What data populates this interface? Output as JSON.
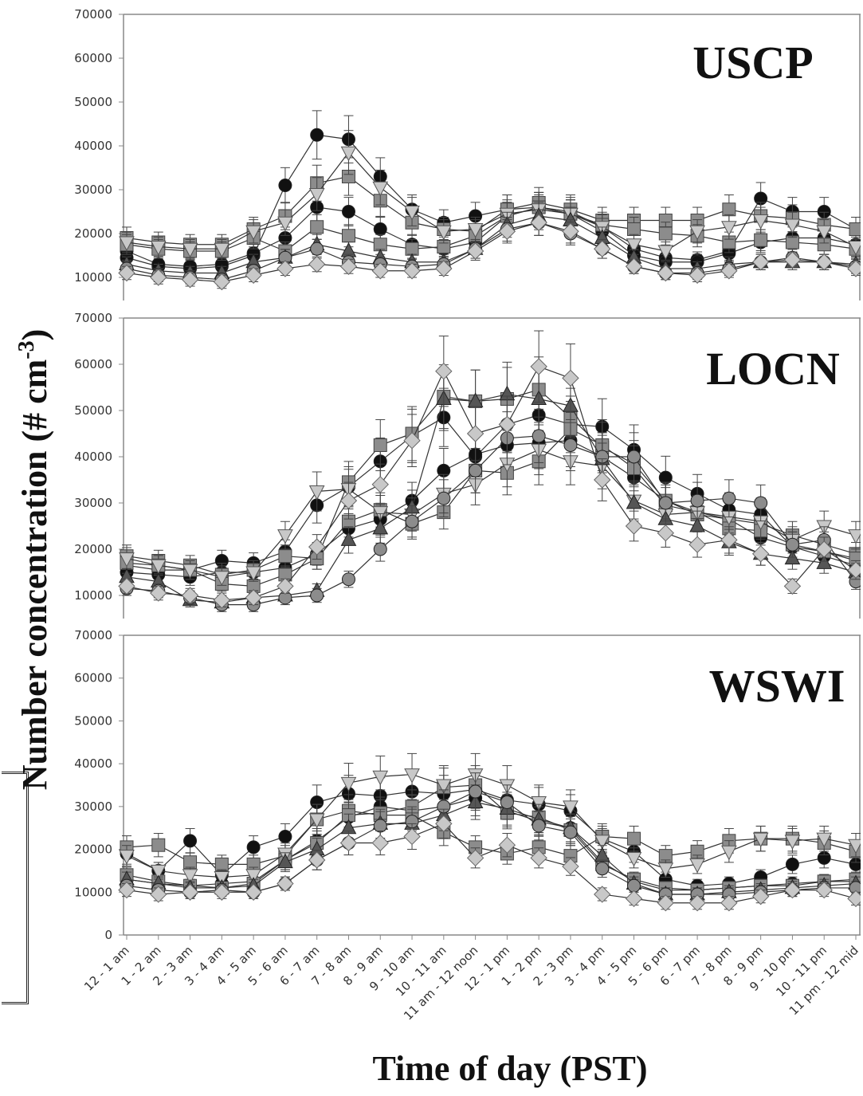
{
  "chart_data": [
    {
      "type": "line",
      "title": "USCP",
      "ylim": [
        10000,
        70000
      ],
      "yticks": [
        10000,
        20000,
        30000,
        40000,
        50000,
        60000,
        70000
      ],
      "series": [
        {
          "style": "black-circle",
          "values": [
            14500,
            12500,
            12000,
            12500,
            15000,
            31000,
            42500,
            41500,
            33000,
            25500,
            22500,
            24000,
            25500,
            26000,
            25000,
            21500,
            16500,
            14500,
            14000,
            16000,
            28000,
            25000,
            25000,
            21000
          ]
        },
        {
          "style": "black-circle",
          "values": [
            16000,
            13000,
            12500,
            13000,
            15500,
            19000,
            26000,
            25000,
            21000,
            17500,
            16500,
            18000,
            24000,
            26000,
            24500,
            20500,
            15000,
            13500,
            13500,
            15500,
            18000,
            19000,
            19000,
            17500
          ]
        },
        {
          "style": "gray-square",
          "values": [
            19000,
            18000,
            17500,
            17500,
            21000,
            24000,
            31500,
            33000,
            27500,
            22500,
            21000,
            20500,
            25500,
            27000,
            25500,
            23000,
            23000,
            23000,
            23000,
            25500,
            24000,
            23500,
            22000,
            21000
          ]
        },
        {
          "style": "gray-square",
          "values": [
            17500,
            16500,
            16000,
            16000,
            19000,
            16000,
            21500,
            19500,
            17500,
            16500,
            17000,
            19500,
            24000,
            26000,
            24500,
            22000,
            21000,
            20000,
            19500,
            18000,
            18500,
            18000,
            17500,
            16500
          ]
        },
        {
          "style": "light-triangle-down",
          "values": [
            18000,
            17000,
            16500,
            16500,
            20500,
            22500,
            29000,
            38500,
            30500,
            25000,
            20500,
            21000,
            24500,
            25500,
            24500,
            21500,
            17500,
            16000,
            20500,
            21500,
            23000,
            22000,
            20500,
            17000
          ]
        },
        {
          "style": "dark-triangle-up",
          "values": [
            13000,
            11500,
            11000,
            11000,
            13500,
            14500,
            17500,
            16000,
            14500,
            13500,
            13500,
            16500,
            22000,
            24000,
            23000,
            19000,
            14500,
            12000,
            12000,
            13000,
            13500,
            13500,
            13500,
            13000
          ]
        },
        {
          "style": "gray-circle",
          "values": [
            12000,
            10500,
            10000,
            9500,
            11500,
            14500,
            16500,
            13500,
            13000,
            12500,
            13000,
            16500,
            21000,
            22500,
            20000,
            16500,
            12500,
            11000,
            11000,
            12000,
            13500,
            14500,
            13500,
            12500
          ]
        },
        {
          "style": "light-diamond",
          "values": [
            11000,
            10000,
            9500,
            9000,
            10500,
            12000,
            13000,
            12500,
            11500,
            11500,
            12000,
            16000,
            20500,
            22500,
            20500,
            16500,
            12500,
            11000,
            10500,
            11500,
            13500,
            14000,
            13500,
            12000
          ]
        }
      ]
    },
    {
      "type": "line",
      "title": "LOCN",
      "ylim": [
        10000,
        70000
      ],
      "yticks": [
        10000,
        20000,
        30000,
        40000,
        50000,
        60000,
        70000
      ],
      "series": [
        {
          "style": "black-circle",
          "values": [
            16500,
            15500,
            15500,
            17500,
            17000,
            19500,
            29500,
            33500,
            39000,
            44500,
            48500,
            40000,
            47000,
            49000,
            47000,
            46500,
            41500,
            35500,
            32000,
            28500,
            27500,
            20500,
            19500,
            17500
          ]
        },
        {
          "style": "black-circle",
          "values": [
            15000,
            14500,
            14000,
            15000,
            15000,
            16000,
            19000,
            24500,
            26500,
            30500,
            37000,
            40500,
            42500,
            43000,
            43500,
            40000,
            35500,
            30500,
            28000,
            26500,
            22500,
            20500,
            18500,
            16500
          ]
        },
        {
          "style": "gray-square",
          "values": [
            18500,
            17500,
            16500,
            14500,
            15500,
            18500,
            18000,
            34500,
            42500,
            45000,
            53000,
            52000,
            52500,
            54500,
            48500,
            42000,
            38500,
            30500,
            27500,
            26500,
            25500,
            23000,
            21000,
            19000
          ]
        },
        {
          "style": "gray-square",
          "values": [
            17000,
            16500,
            15500,
            12500,
            12000,
            14500,
            18000,
            26000,
            28500,
            25500,
            28000,
            37000,
            36500,
            39000,
            46000,
            42500,
            37500,
            29500,
            28000,
            24500,
            24000,
            21000,
            19500,
            18000
          ]
        },
        {
          "style": "light-triangle-down",
          "values": [
            18000,
            16500,
            15500,
            14000,
            15000,
            23000,
            32500,
            33000,
            28000,
            27500,
            32000,
            34000,
            38500,
            41500,
            39000,
            38000,
            30500,
            27500,
            28000,
            27000,
            26000,
            22000,
            25000,
            23000
          ]
        },
        {
          "style": "dark-triangle-up",
          "values": [
            14000,
            13000,
            9000,
            8500,
            9500,
            10000,
            11000,
            22000,
            24500,
            29000,
            52500,
            52000,
            53500,
            52500,
            51000,
            39500,
            30000,
            26500,
            25000,
            21500,
            19000,
            18000,
            17000,
            15000
          ]
        },
        {
          "style": "gray-circle",
          "values": [
            11500,
            11000,
            9500,
            8000,
            8000,
            9500,
            10000,
            13500,
            20000,
            26000,
            31000,
            37000,
            44000,
            44500,
            42500,
            40000,
            40000,
            30000,
            30500,
            31000,
            30000,
            21000,
            22000,
            13000
          ]
        },
        {
          "style": "light-diamond",
          "values": [
            12000,
            10500,
            10000,
            9000,
            9500,
            12000,
            20500,
            30500,
            34000,
            43500,
            58500,
            45000,
            47000,
            59500,
            57000,
            35000,
            25000,
            23500,
            21000,
            22000,
            19000,
            12000,
            20000,
            15500
          ]
        }
      ]
    },
    {
      "type": "line",
      "title": "WSWI",
      "ylim": [
        0,
        70000
      ],
      "yticks": [
        0,
        10000,
        20000,
        30000,
        40000,
        50000,
        60000,
        70000
      ],
      "xlabel": "Time of day (PST)",
      "categories": [
        "12 - 1 am",
        "1 - 2 am",
        "2 - 3 am",
        "3 - 4 am",
        "4 - 5 am",
        "5 - 6 am",
        "6 - 7 am",
        "7 - 8 am",
        "8 - 9 am",
        "9 - 10 am",
        "10 - 11 am",
        "11 am - 12 noon",
        "12 - 1 pm",
        "1 - 2 pm",
        "2 - 3 pm",
        "3 - 4 pm",
        "4 - 5 pm",
        "5 - 6 pm",
        "6 - 7 pm",
        "7 - 8 pm",
        "8 - 9 pm",
        "9 - 10 pm",
        "10 - 11 pm",
        "11 pm - 12 mid"
      ],
      "series": [
        {
          "style": "black-circle",
          "values": [
            19000,
            15000,
            22000,
            14000,
            20500,
            23000,
            31000,
            33000,
            32500,
            33500,
            33000,
            34000,
            31500,
            30500,
            29000,
            22500,
            19500,
            13000,
            11500,
            12000,
            13500,
            16500,
            18000,
            16500
          ]
        },
        {
          "style": "black-circle",
          "values": [
            13000,
            12000,
            11500,
            12000,
            12500,
            17500,
            22000,
            27500,
            30000,
            29000,
            30000,
            32000,
            29000,
            26500,
            25000,
            17000,
            12500,
            10500,
            10500,
            11000,
            11500,
            12000,
            12500,
            12500
          ]
        },
        {
          "style": "gray-square",
          "values": [
            20500,
            21000,
            17000,
            16500,
            16500,
            18500,
            27000,
            29000,
            28000,
            28000,
            24000,
            20500,
            19000,
            20500,
            18500,
            23000,
            22500,
            18500,
            19500,
            22000,
            22500,
            22500,
            21500,
            19500
          ]
        },
        {
          "style": "gray-square",
          "values": [
            14000,
            12500,
            11500,
            11000,
            12000,
            17500,
            21500,
            28000,
            28500,
            30000,
            34500,
            35000,
            28500,
            27500,
            24500,
            16500,
            13000,
            11000,
            10500,
            11000,
            11500,
            11500,
            12500,
            13000
          ]
        },
        {
          "style": "light-triangle-down",
          "values": [
            18500,
            15000,
            14000,
            13500,
            14000,
            19000,
            27000,
            35500,
            37000,
            37500,
            35000,
            37500,
            35000,
            31000,
            30000,
            22000,
            18000,
            15500,
            16500,
            19500,
            22500,
            22000,
            22500,
            21000
          ]
        },
        {
          "style": "dark-triangle-up",
          "values": [
            13000,
            12000,
            11000,
            11000,
            11500,
            17000,
            20000,
            25000,
            26000,
            26000,
            28000,
            31000,
            29500,
            27000,
            25000,
            18500,
            12000,
            9500,
            9500,
            10000,
            10500,
            11000,
            11500,
            12000
          ]
        },
        {
          "style": "gray-circle",
          "values": [
            11500,
            10500,
            10000,
            10500,
            10000,
            12000,
            17500,
            21500,
            25500,
            26500,
            30000,
            33500,
            31000,
            25500,
            24000,
            15500,
            11500,
            9500,
            9500,
            9500,
            10000,
            10500,
            11000,
            11000
          ]
        },
        {
          "style": "light-diamond",
          "values": [
            10500,
            9500,
            10000,
            10000,
            10000,
            12000,
            17500,
            21500,
            21500,
            23000,
            26000,
            18000,
            21000,
            18000,
            16000,
            9500,
            8500,
            7500,
            7500,
            7500,
            9000,
            10500,
            10500,
            8500
          ]
        }
      ]
    }
  ],
  "shared": {
    "ylabel_main": "Number concentration (# cm",
    "ylabel_exp": "-3",
    "ylabel_close": ")"
  },
  "colors": {
    "black": "#111111",
    "dark_gray": "#555555",
    "mid_gray": "#8c8c8c",
    "light_gray": "#c8c8c8",
    "axis": "#888888"
  }
}
